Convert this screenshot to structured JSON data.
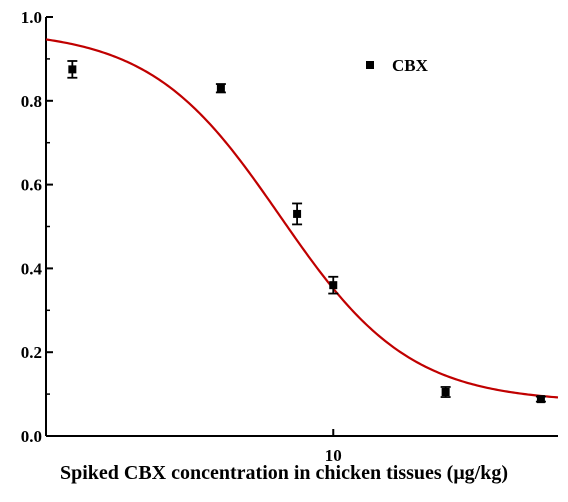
{
  "chart_data": {
    "type": "scatter",
    "xlabel": "Spiked CBX concentration in chicken tissues (μg/kg)",
    "ylabel": "",
    "x_scale": "log",
    "xlim": [
      1.7,
      40
    ],
    "ylim": [
      0.0,
      1.0
    ],
    "y_ticks": [
      "0.0",
      "0.2",
      "0.4",
      "0.6",
      "0.8",
      "1.0"
    ],
    "x_ticks": [
      "10"
    ],
    "legend": {
      "position": "top-right",
      "entries": [
        "CBX"
      ]
    },
    "series": [
      {
        "name": "CBX",
        "x": [
          2,
          5,
          8,
          10,
          20,
          36
        ],
        "y": [
          0.875,
          0.83,
          0.53,
          0.36,
          0.105,
          0.088
        ],
        "err": [
          0.02,
          0.01,
          0.025,
          0.02,
          0.012,
          0.006
        ],
        "color": "#000000"
      }
    ],
    "fit": {
      "color": "#c00000",
      "model": "4PL",
      "top": 0.97,
      "bottom": 0.08,
      "ic50": 7.2,
      "hill": 2.5
    }
  }
}
